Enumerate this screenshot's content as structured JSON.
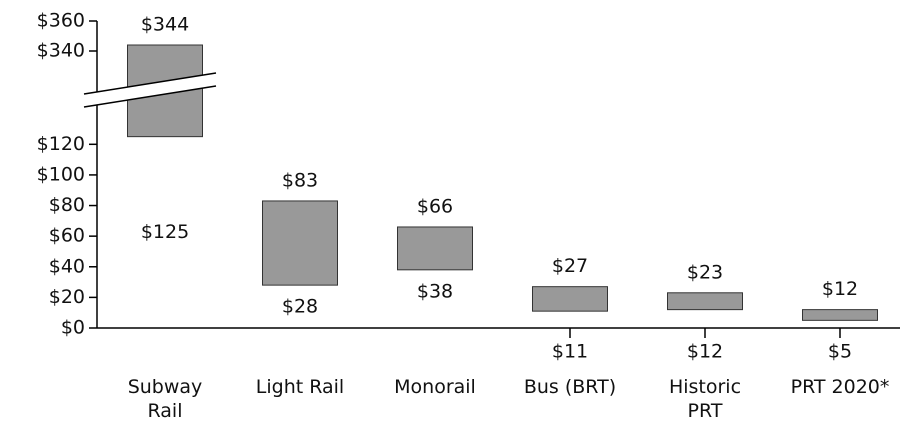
{
  "chart_data": {
    "type": "floating_bar",
    "categories": [
      "Subway\nRail",
      "Light Rail",
      "Monorail",
      "Bus (BRT)",
      "Historic\nPRT",
      "PRT 2020*"
    ],
    "low": [
      125,
      28,
      38,
      11,
      12,
      5
    ],
    "low_labels": [
      "$125",
      "$28",
      "$38",
      "$11",
      "$12",
      "$5"
    ],
    "high": [
      344,
      83,
      66,
      27,
      23,
      12
    ],
    "high_labels": [
      "$344",
      "$83",
      "$66",
      "$27",
      "$23",
      "$12"
    ],
    "color": "#999999",
    "ylim": [
      0,
      130
    ],
    "yticks": [
      {
        "value": 0,
        "label": "$0"
      },
      {
        "value": 20,
        "label": "$20"
      },
      {
        "value": 40,
        "label": "$40"
      },
      {
        "value": 60,
        "label": "$60"
      },
      {
        "value": 80,
        "label": "$80"
      },
      {
        "value": 100,
        "label": "$100"
      },
      {
        "value": 120,
        "label": "$120"
      }
    ],
    "ylim_upper": [
      330,
      360
    ],
    "yticks_upper": [
      {
        "value": 340,
        "label": "$340"
      },
      {
        "value": 360,
        "label": "$360"
      }
    ]
  }
}
